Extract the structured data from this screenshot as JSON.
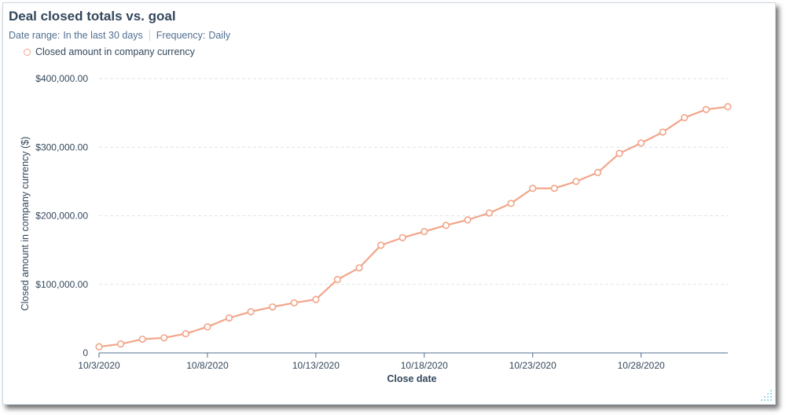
{
  "header": {
    "title": "Deal closed totals vs. goal",
    "date_range_label": "Date range:",
    "date_range_value": "In the last 30 days",
    "frequency_label": "Frequency:",
    "frequency_value": "Daily"
  },
  "colors": {
    "series": "#f2a589",
    "text": "#33475b",
    "grid": "#dfe3eb",
    "axis": "#516f90"
  },
  "chart_data": {
    "type": "line",
    "title": "Deal closed totals vs. goal",
    "xlabel": "Close date",
    "ylabel": "Closed amount in company currency ($)",
    "ylim": [
      0,
      400000
    ],
    "yticks": [
      0,
      100000,
      200000,
      300000,
      400000
    ],
    "ytick_labels": [
      "0",
      "$100,000.00",
      "$200,000.00",
      "$300,000.00",
      "$400,000.00"
    ],
    "xtick_labels": [
      "10/3/2020",
      "10/8/2020",
      "10/13/2020",
      "10/18/2020",
      "10/23/2020",
      "10/28/2020"
    ],
    "xtick_dates": [
      "2020-10-03",
      "2020-10-08",
      "2020-10-13",
      "2020-10-18",
      "2020-10-23",
      "2020-10-28"
    ],
    "grid": true,
    "legend_position": "top-left",
    "series": [
      {
        "name": "Closed amount in company currency",
        "x": [
          "2020-10-03",
          "2020-10-04",
          "2020-10-05",
          "2020-10-06",
          "2020-10-07",
          "2020-10-08",
          "2020-10-09",
          "2020-10-10",
          "2020-10-11",
          "2020-10-12",
          "2020-10-13",
          "2020-10-14",
          "2020-10-15",
          "2020-10-16",
          "2020-10-17",
          "2020-10-18",
          "2020-10-19",
          "2020-10-20",
          "2020-10-21",
          "2020-10-22",
          "2020-10-23",
          "2020-10-24",
          "2020-10-25",
          "2020-10-26",
          "2020-10-27",
          "2020-10-28",
          "2020-10-29",
          "2020-10-30",
          "2020-10-31",
          "2020-11-01"
        ],
        "values": [
          9000,
          13000,
          20000,
          22000,
          28000,
          38000,
          51000,
          60000,
          67000,
          73000,
          78000,
          107000,
          124000,
          157000,
          168000,
          177000,
          186000,
          194000,
          204000,
          218000,
          240000,
          240000,
          250000,
          263000,
          291000,
          306000,
          322000,
          343000,
          355000,
          359000
        ]
      }
    ]
  }
}
